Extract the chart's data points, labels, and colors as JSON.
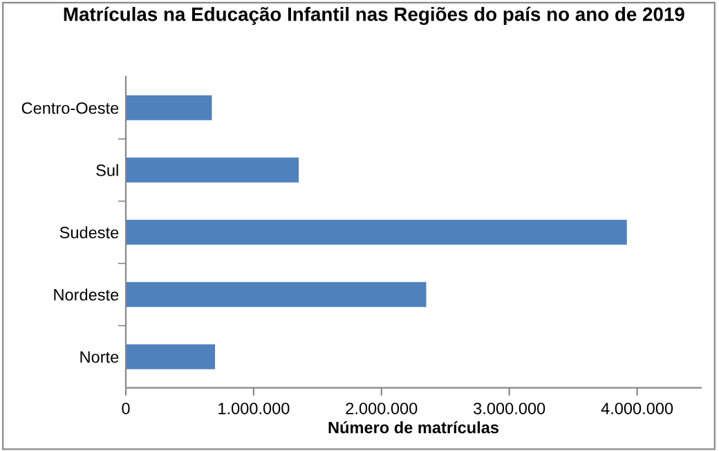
{
  "chart_data": {
    "type": "bar",
    "orientation": "horizontal",
    "title": "Matrículas na Educação Infantil nas Regiões do país no ano de 2019",
    "xlabel": "Número de matrículas",
    "categories": [
      "Centro-Oeste",
      "Sul",
      "Sudeste",
      "Nordeste",
      "Norte"
    ],
    "values": [
      673000,
      1353000,
      3920000,
      2350000,
      698000
    ],
    "color": "#4f81bd",
    "xlim": [
      0,
      4500000
    ],
    "xticks": [
      0,
      {
        "value": 1000000,
        "label": "1.000.000"
      },
      {
        "value": 2000000,
        "label": "2.000.000"
      },
      {
        "value": 3000000,
        "label": "3.000.000"
      },
      {
        "value": 4000000,
        "label": "4.000.000"
      }
    ],
    "grid": false
  }
}
